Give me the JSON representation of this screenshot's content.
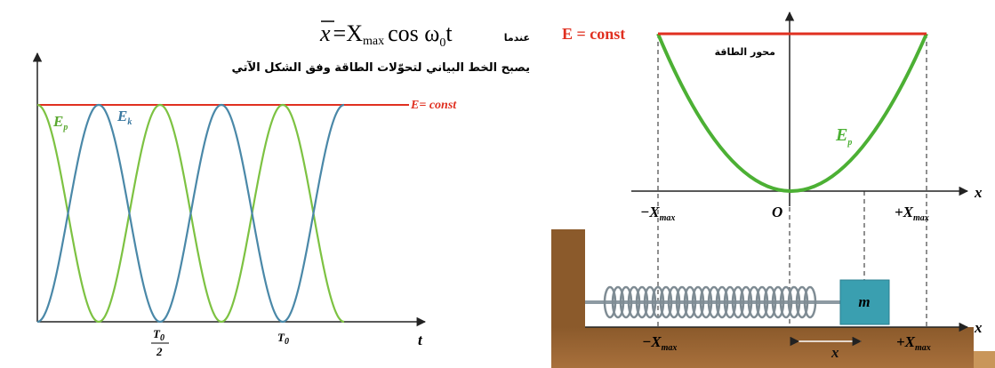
{
  "left_graph": {
    "condition": "عندما",
    "equation": {
      "bar_x": "x",
      "equals": "=X",
      "max": "max",
      "cos": "cos ω",
      "zero": "0",
      "t": "t"
    },
    "caption": "يصبح الخط البياني لتحوّلات الطاقة وفق الشكل الآتي",
    "energy_line": "E= const",
    "ep": {
      "main": "E",
      "sub": "p"
    },
    "ek": {
      "main": "E",
      "sub": "k"
    },
    "half_period": {
      "t": "T",
      "sub": "0",
      "den": "2"
    },
    "period": {
      "t": "T",
      "sub": "0"
    },
    "time_axis": "t"
  },
  "right_graph": {
    "energy_line": "E = const",
    "axis_label": "محور الطاقة",
    "ep": {
      "main": "E",
      "sub": "p"
    },
    "x_axis": "x",
    "neg": {
      "main": "−X",
      "sub": "max"
    },
    "origin": "O",
    "pos": {
      "main": "+X",
      "sub": "max"
    }
  },
  "mechanism": {
    "mass": "m",
    "x_axis": "x",
    "neg": {
      "main": "−X",
      "sub": "max"
    },
    "displacement": "x",
    "pos": {
      "main": "+X",
      "sub": "max"
    }
  }
}
